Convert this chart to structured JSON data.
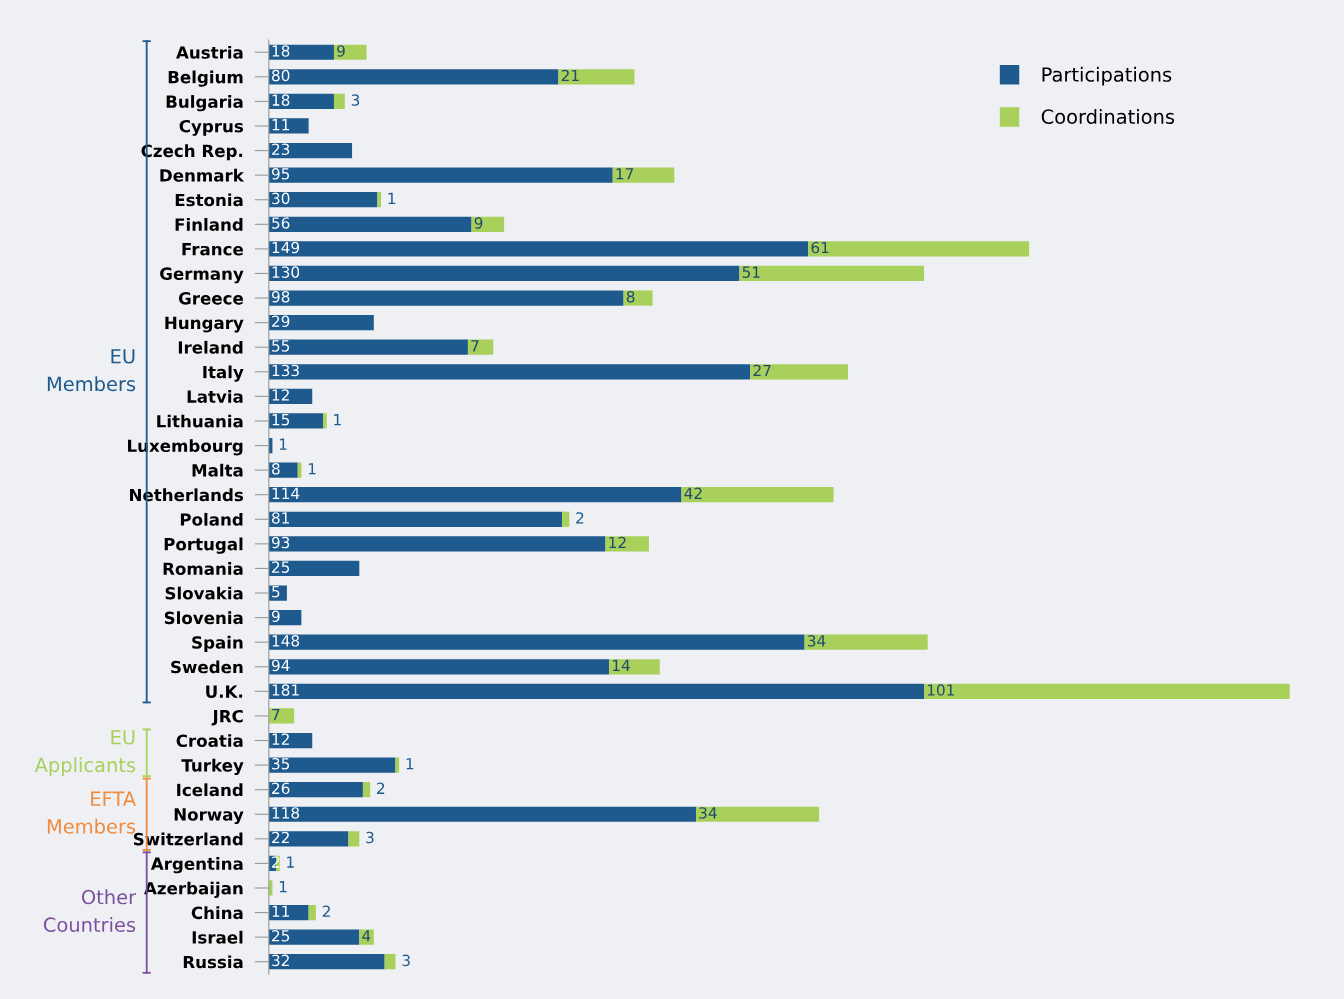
{
  "chart_data": {
    "type": "bar",
    "orientation": "horizontal",
    "stacked": true,
    "categories": [
      "Austria",
      "Belgium",
      "Bulgaria",
      "Cyprus",
      "Czech Rep.",
      "Denmark",
      "Estonia",
      "Finland",
      "France",
      "Germany",
      "Greece",
      "Hungary",
      "Ireland",
      "Italy",
      "Latvia",
      "Lithuania",
      "Luxembourg",
      "Malta",
      "Netherlands",
      "Poland",
      "Portugal",
      "Romania",
      "Slovakia",
      "Slovenia",
      "Spain",
      "Sweden",
      "U.K.",
      "JRC",
      "Croatia",
      "Turkey",
      "Iceland",
      "Norway",
      "Switzerland",
      "Argentina",
      "Azerbaijan",
      "China",
      "Israel",
      "Russia"
    ],
    "series": [
      {
        "name": "Participations",
        "color": "#1f5a8e",
        "values": [
          18,
          80,
          18,
          11,
          23,
          95,
          30,
          56,
          149,
          130,
          98,
          29,
          55,
          133,
          12,
          15,
          1,
          8,
          114,
          81,
          93,
          25,
          5,
          9,
          148,
          94,
          181,
          null,
          12,
          35,
          26,
          118,
          22,
          2,
          null,
          11,
          25,
          32
        ]
      },
      {
        "name": "Coordinations",
        "color": "#a8d05a",
        "values": [
          9,
          21,
          3,
          null,
          null,
          17,
          1,
          9,
          61,
          51,
          8,
          null,
          7,
          27,
          null,
          1,
          null,
          1,
          42,
          2,
          12,
          null,
          null,
          null,
          34,
          14,
          101,
          7,
          null,
          1,
          2,
          34,
          3,
          1,
          1,
          2,
          4,
          3
        ]
      }
    ],
    "data_labels": true,
    "annotations": [
      "EU\nMembers",
      "EU\nApplicants",
      "EFTA\nMembers",
      "Other\nCountries"
    ],
    "legend": "top right",
    "tick_labels": "y",
    "grid": false
  }
}
